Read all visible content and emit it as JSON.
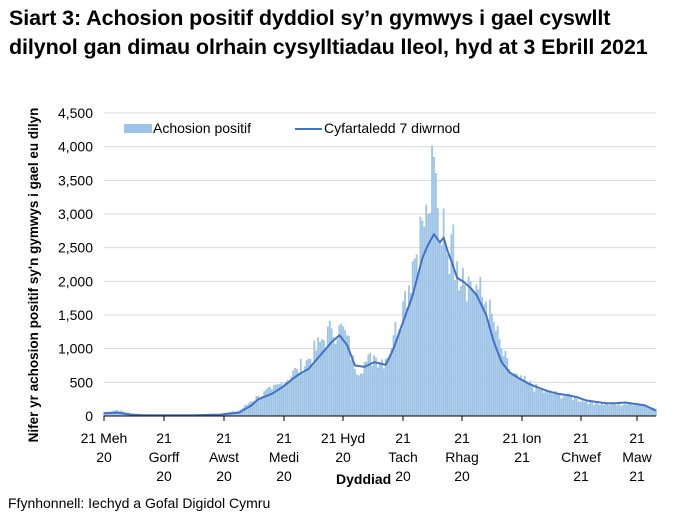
{
  "title": "Siart 3: Achosion positif dyddiol sy’n gymwys i gael cyswllt dilynol gan dimau olrhain cysylltiadau lleol, hyd at 3 Ebrill 2021",
  "source": "Ffynhonnell: Iechyd a Gofal Digidol Cymru",
  "colors": {
    "bars": "#9dc3e6",
    "line": "#4472c4",
    "grid": "#d9d9d9",
    "axis": "#000000"
  },
  "chart_data": {
    "type": "bar",
    "title": "Siart 3: Achosion positif dyddiol sy’n gymwys i gael cyswllt dilynol gan dimau olrhain cysylltiadau lleol, hyd at 3 Ebrill 2021",
    "xlabel": "Dyddiad",
    "ylabel": "Nifer yr achosion positif sy'n gymwys i gael eu dilyn",
    "ylim": [
      0,
      4500
    ],
    "yticks": [
      0,
      500,
      1000,
      1500,
      2000,
      2500,
      3000,
      3500,
      4000,
      4500
    ],
    "ytick_labels": [
      "0",
      "500",
      "1,000",
      "1,500",
      "2,000",
      "2,500",
      "3,000",
      "3,500",
      "4,000",
      "4,500"
    ],
    "xticks": [
      "21 Meh 20",
      "21 Gorff 20",
      "21 Awst 20",
      "21 Medi 20",
      "21 Hyd 20",
      "21 Tach 20",
      "21 Rhag 20",
      "21 Ion 21",
      "21 Chwef 21",
      "21 Maw 21"
    ],
    "grid": true,
    "legend_position": "top",
    "legend": [
      "Achosion positif",
      "Cyfartaledd 7 diwrnod"
    ],
    "x_range": [
      "21 Meh 20",
      "3 Ebr 21"
    ],
    "series": [
      {
        "name": "Achosion positif",
        "type": "bar",
        "x_day_offsets": [
          0,
          7,
          14,
          21,
          30,
          45,
          60,
          70,
          76,
          80,
          87,
          92,
          100,
          106,
          112,
          118,
          122,
          126,
          130,
          135,
          140,
          146,
          150,
          155,
          160,
          165,
          168,
          171,
          174,
          176,
          178,
          180,
          183,
          186,
          190,
          193,
          198,
          202,
          206,
          210,
          215,
          220,
          225,
          230,
          235,
          240,
          245,
          250,
          255,
          260,
          265,
          270,
          275,
          280,
          286
        ],
        "values": [
          60,
          90,
          40,
          20,
          15,
          15,
          30,
          80,
          220,
          300,
          400,
          500,
          700,
          850,
          1100,
          1300,
          1350,
          1200,
          700,
          800,
          900,
          850,
          1200,
          1700,
          2300,
          2900,
          3000,
          3850,
          2600,
          3080,
          2400,
          2700,
          2300,
          2200,
          2000,
          1950,
          1700,
          1400,
          1000,
          700,
          550,
          500,
          400,
          350,
          330,
          300,
          260,
          220,
          200,
          180,
          170,
          180,
          190,
          160,
          100
        ]
      },
      {
        "name": "Cyfartaledd 7 diwrnod",
        "type": "line",
        "x_day_offsets": [
          0,
          7,
          14,
          21,
          30,
          45,
          60,
          70,
          76,
          80,
          87,
          92,
          100,
          106,
          112,
          118,
          122,
          126,
          130,
          135,
          140,
          146,
          150,
          155,
          160,
          165,
          168,
          171,
          174,
          176,
          178,
          180,
          183,
          186,
          190,
          193,
          198,
          202,
          206,
          210,
          215,
          220,
          225,
          230,
          235,
          240,
          245,
          250,
          255,
          260,
          265,
          270,
          275,
          280,
          286
        ],
        "values": [
          40,
          50,
          20,
          10,
          10,
          10,
          20,
          50,
          150,
          250,
          330,
          420,
          600,
          700,
          900,
          1100,
          1200,
          1050,
          750,
          730,
          800,
          760,
          1000,
          1400,
          1800,
          2350,
          2550,
          2700,
          2580,
          2650,
          2450,
          2300,
          2050,
          2000,
          1900,
          1800,
          1500,
          1100,
          800,
          650,
          560,
          480,
          420,
          370,
          330,
          310,
          280,
          230,
          210,
          190,
          190,
          200,
          180,
          160,
          80
        ]
      }
    ]
  }
}
